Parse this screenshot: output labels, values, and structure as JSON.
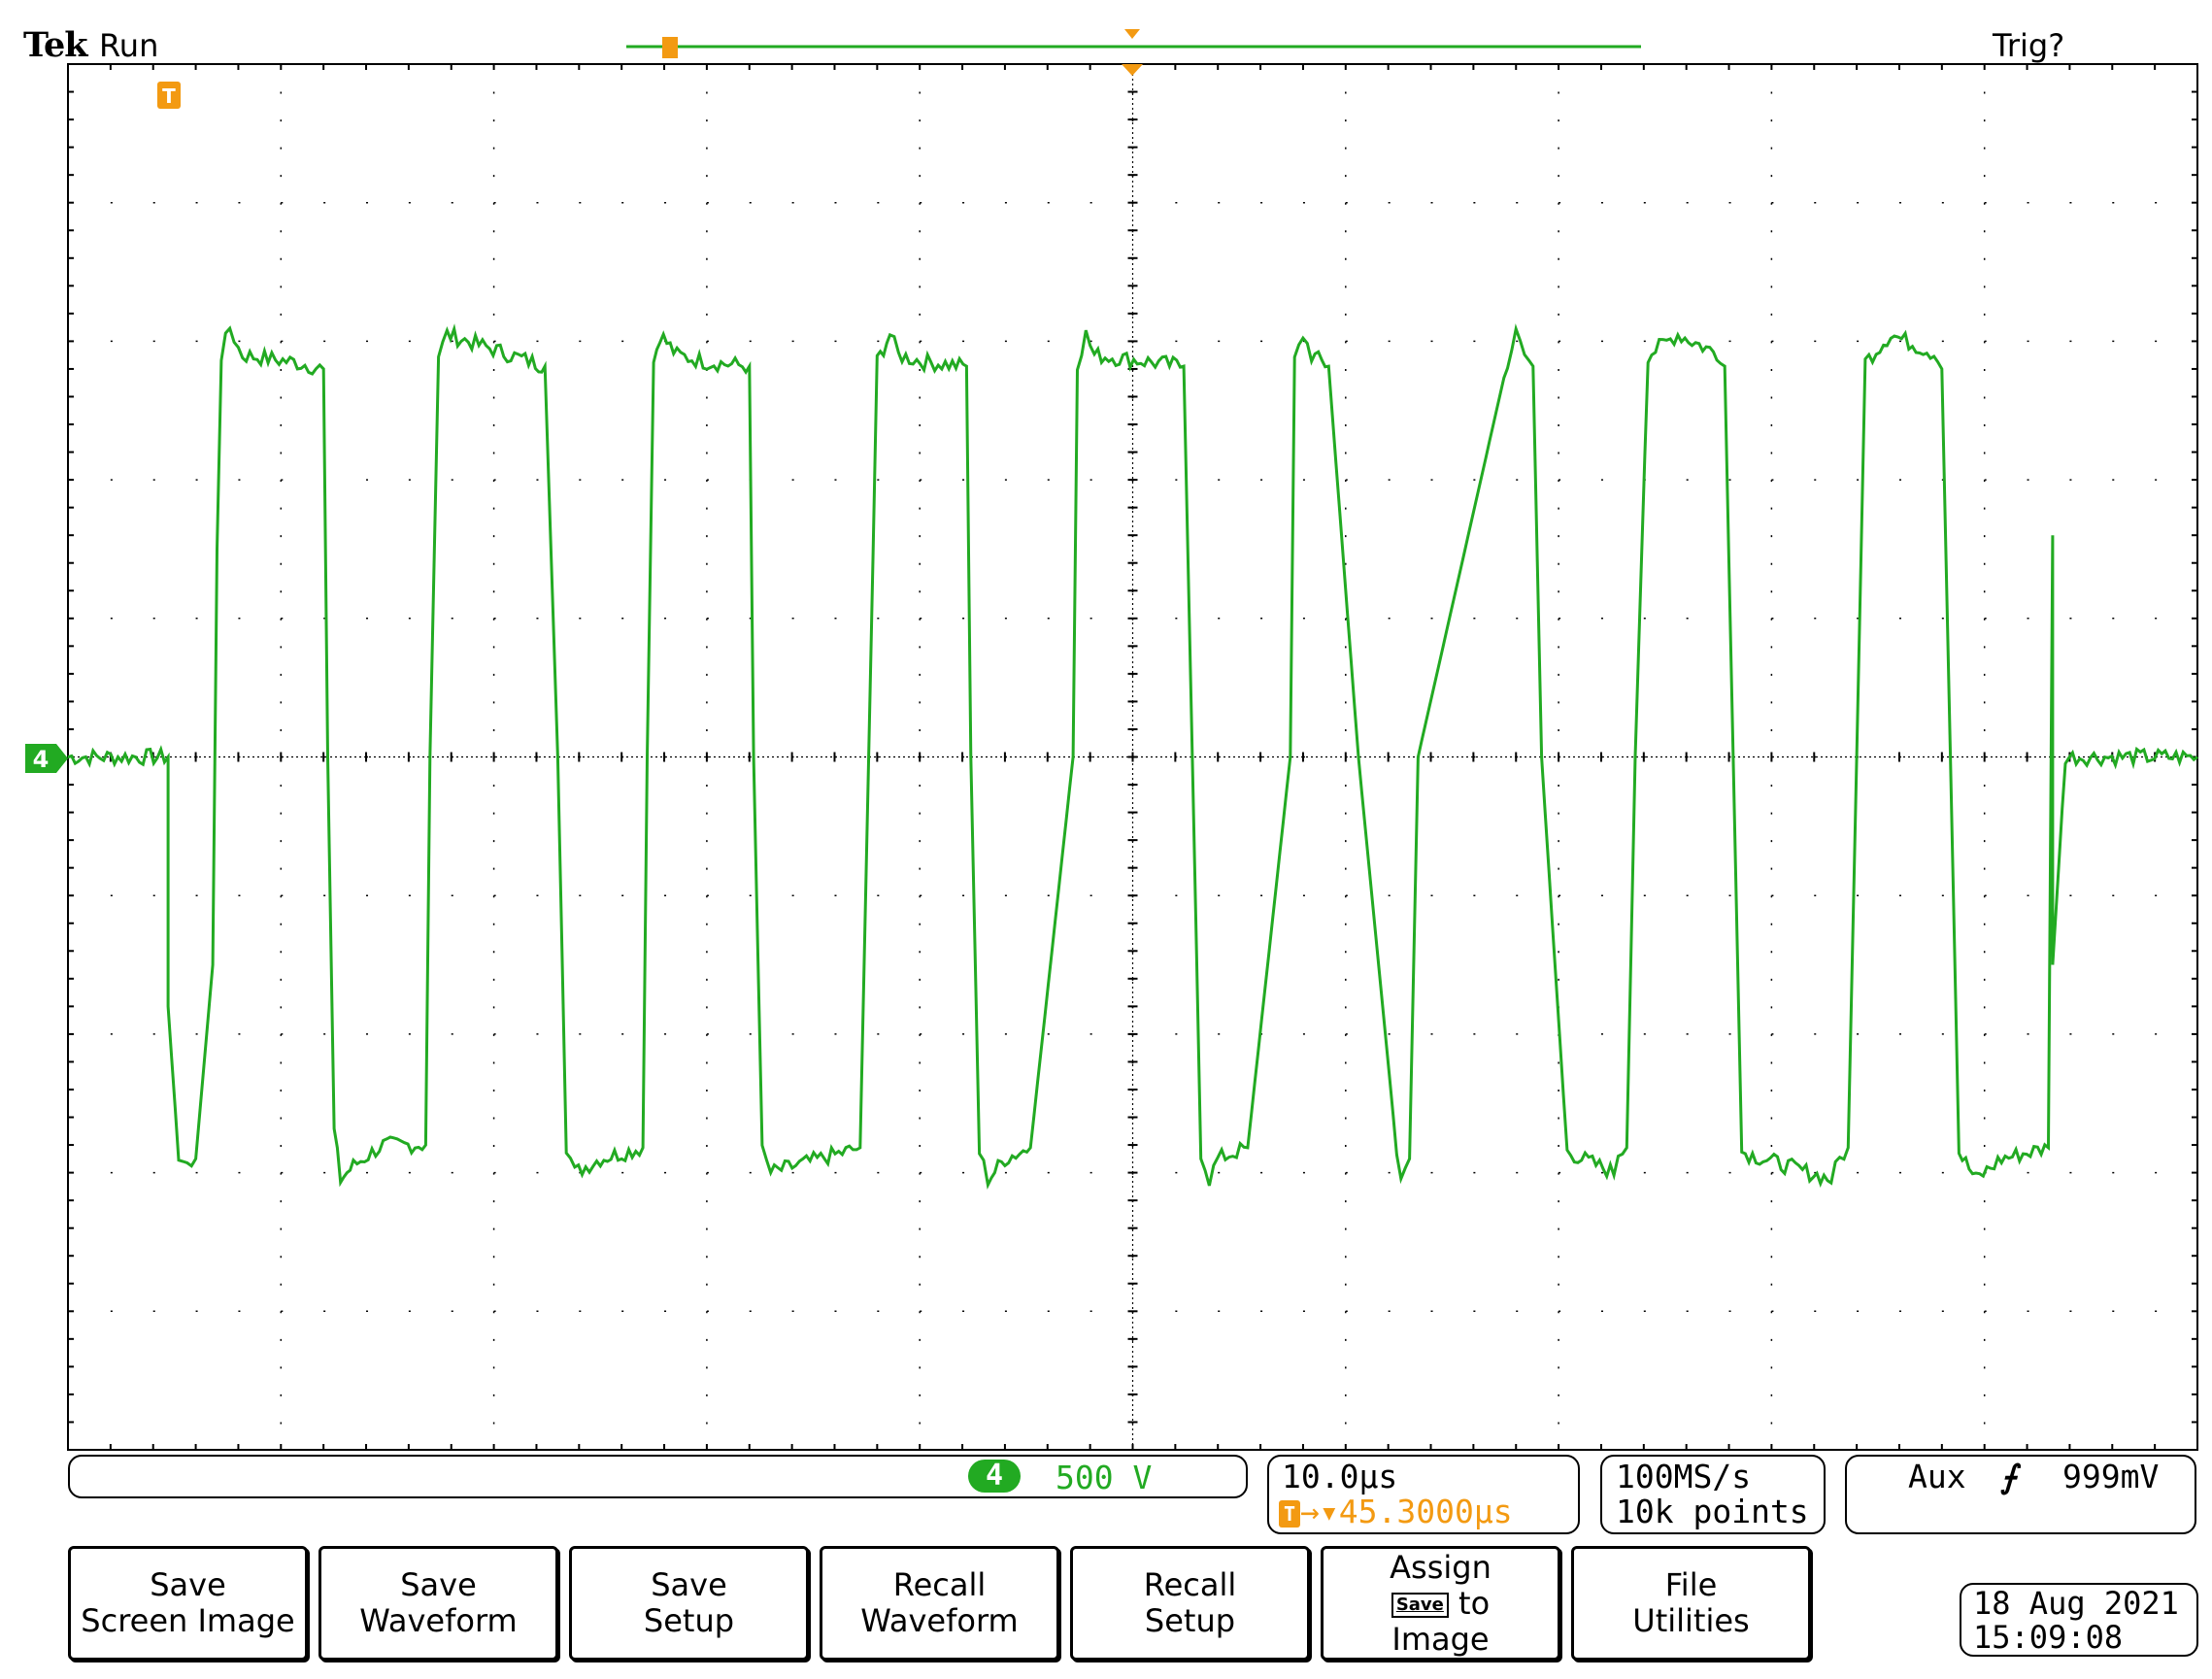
{
  "header": {
    "brand": "Tek",
    "acq_state": "Run",
    "trigger_status": "Trig?"
  },
  "channel": {
    "number": "4",
    "scale": "500 V"
  },
  "timebase": {
    "scale": "10.0µs",
    "trigger_position": "45.3000µs"
  },
  "acquisition": {
    "sample_rate": "100MS/s",
    "record_length": "10k points"
  },
  "trigger": {
    "source": "Aux",
    "slope_symbol": "⨍",
    "level": "999mV"
  },
  "softkeys": [
    {
      "line1": "Save",
      "line2": "Screen Image"
    },
    {
      "line1": "Save",
      "line2": "Waveform"
    },
    {
      "line1": "Save",
      "line2": "Setup"
    },
    {
      "line1": "Recall",
      "line2": "Waveform"
    },
    {
      "line1": "Recall",
      "line2": "Setup"
    },
    {
      "line1": "Assign",
      "icon_text": "Save",
      "line2": "to",
      "line3": "Image"
    },
    {
      "line1": "File",
      "line2": "Utilities"
    }
  ],
  "datetime": {
    "date": "18 Aug 2021",
    "time": "15:09:08"
  },
  "colors": {
    "trace": "#22aa22",
    "trigger_marker": "#f39a12"
  },
  "chart_data": {
    "type": "line",
    "title": "",
    "xlabel": "",
    "ylabel": "",
    "x_divisions": 10,
    "y_divisions": 10,
    "grid": true,
    "series": [
      {
        "x_div": [
          0,
          0.47,
          0.47,
          0.52,
          0.56,
          0.6,
          0.68,
          0.7,
          0.72,
          0.76,
          0.8,
          0.82,
          1.06,
          1.2,
          1.22,
          1.25,
          1.28,
          1.34,
          1.48,
          1.68,
          1.7,
          1.74,
          1.78,
          2.18,
          2.24,
          2.3,
          2.34,
          2.38,
          2.5,
          2.7,
          2.72,
          2.75,
          2.78,
          2.86,
          3.0,
          3.2,
          3.22,
          3.26,
          3.3,
          3.72,
          3.76,
          3.8,
          3.86,
          3.9,
          4.02,
          4.22,
          4.24,
          4.28,
          4.32,
          4.4,
          4.52,
          4.72,
          4.74,
          4.78,
          4.82,
          5.24,
          5.28,
          5.32,
          5.36,
          5.4,
          5.54,
          5.74,
          5.76,
          5.8,
          5.84,
          5.92,
          6.06,
          6.24,
          6.26,
          6.3,
          6.34,
          6.76,
          6.8,
          6.84,
          6.88,
          6.92,
          7.04,
          7.26,
          7.28,
          7.32,
          7.36,
          7.42,
          7.56,
          7.76,
          7.78,
          7.82,
          7.86,
          8.28,
          8.32,
          8.36,
          8.4,
          8.44,
          8.56,
          8.78,
          8.8,
          8.84,
          8.88,
          8.96,
          9.08,
          9.3,
          9.32,
          9.32,
          9.38,
          10.0
        ],
        "y_div": [
          0,
          0,
          -1.8,
          -2.9,
          -2.95,
          -2.9,
          -1.5,
          1.5,
          2.9,
          3.1,
          2.95,
          2.9,
          2.85,
          2.8,
          0,
          -2.7,
          -3.05,
          -2.95,
          -2.8,
          -2.8,
          0,
          2.9,
          3.05,
          2.85,
          2.82,
          0,
          -2.8,
          -3.0,
          -2.9,
          -2.82,
          0,
          2.85,
          3.05,
          2.9,
          2.85,
          2.82,
          0,
          -2.85,
          -3.0,
          -2.82,
          0,
          2.85,
          3.05,
          2.9,
          2.85,
          2.82,
          0,
          -2.85,
          -3.05,
          -2.9,
          -2.82,
          0,
          2.85,
          3.05,
          2.9,
          2.82,
          0,
          -2.85,
          -3.05,
          -2.9,
          -2.82,
          0,
          2.85,
          3.05,
          2.9,
          2.82,
          0,
          -2.85,
          -3.05,
          -2.9,
          0,
          2.85,
          3.05,
          2.9,
          2.82,
          0,
          -2.85,
          -3.0,
          -2.85,
          -2.82,
          0,
          2.9,
          3.05,
          2.9,
          2.82,
          0,
          -2.85,
          -3.05,
          -2.9,
          -2.82,
          0,
          2.85,
          3.05,
          2.9,
          2.8,
          0,
          -2.85,
          -3.05,
          -2.9,
          -2.82,
          1.6,
          -1.5,
          0,
          0
        ]
      }
    ]
  }
}
